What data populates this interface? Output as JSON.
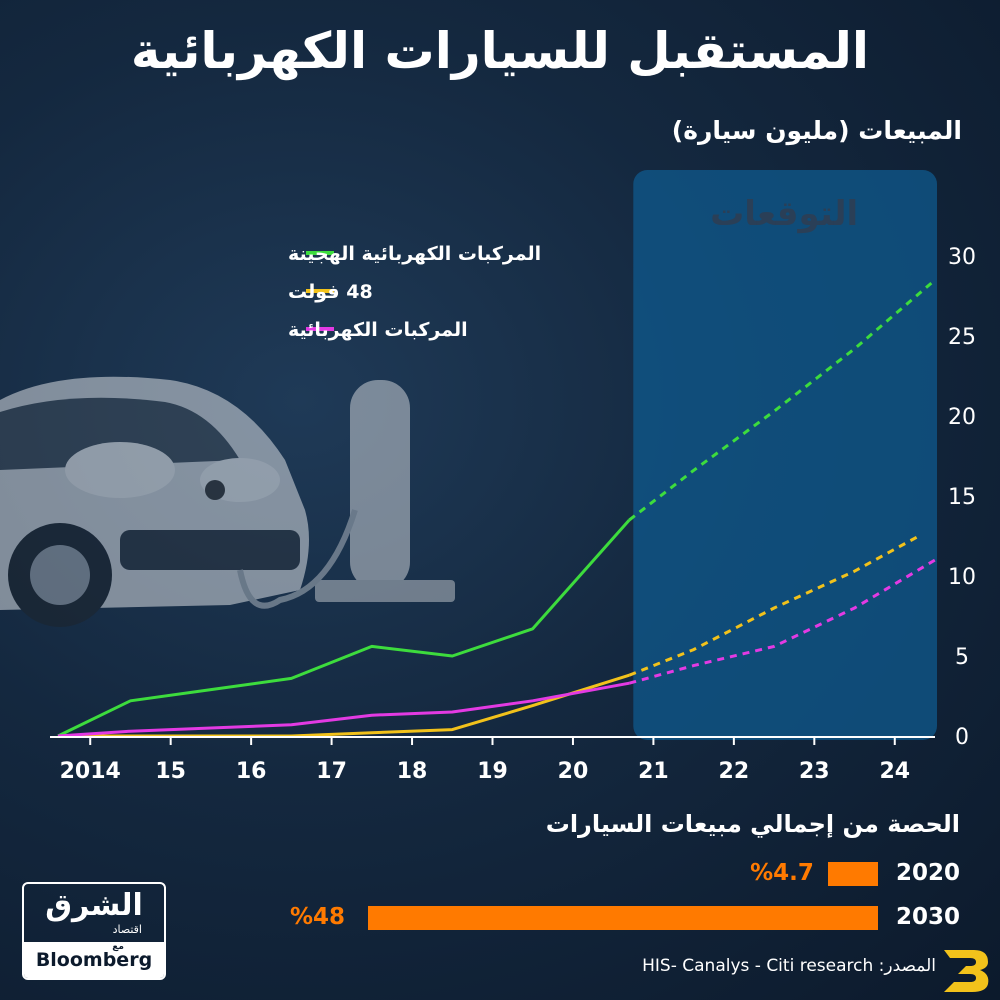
{
  "title": "المستقبل للسيارات الكهربائية",
  "subtitle": "المبيعات (مليون سيارة)",
  "forecast_label": "التوقعات",
  "chart_data": {
    "type": "line",
    "x": [
      2013.6,
      2014.5,
      2015.5,
      2016.5,
      2017.5,
      2018.5,
      2019.5,
      2020.7,
      2021.5,
      2022.5,
      2023.5,
      2024.3
    ],
    "x_tick_labels": [
      "2014",
      "15",
      "16",
      "17",
      "18",
      "19",
      "20",
      "21",
      "22",
      "23",
      "24"
    ],
    "x_tick_positions": [
      2014,
      2015,
      2016,
      2017,
      2018,
      2019,
      2020,
      2021,
      2022,
      2023,
      2024
    ],
    "y_ticks": [
      0,
      5,
      10,
      15,
      20,
      25,
      30
    ],
    "ylim": [
      0,
      30
    ],
    "xlim": [
      2013.5,
      2024.5
    ],
    "forecast_start": 2020.75,
    "legend_position": "top-left",
    "grid": false,
    "series": [
      {
        "name": "المركبات الكهربائية الهجينة",
        "color": "#3ddc3d",
        "actual": [
          [
            2013.6,
            0
          ],
          [
            2014.5,
            2.2
          ],
          [
            2015.5,
            2.9
          ],
          [
            2016.5,
            3.6
          ],
          [
            2017.5,
            5.6
          ],
          [
            2018.5,
            5.0
          ],
          [
            2019.5,
            6.7
          ],
          [
            2020.7,
            13.5
          ]
        ],
        "forecast": [
          [
            2020.7,
            13.5
          ],
          [
            2021.5,
            16.6
          ],
          [
            2022.5,
            20.3
          ],
          [
            2023.5,
            24.2
          ],
          [
            2024.5,
            28.5
          ]
        ]
      },
      {
        "name": "48 فولت",
        "color": "#f2c21b",
        "actual": [
          [
            2013.6,
            0
          ],
          [
            2014.5,
            0
          ],
          [
            2015.5,
            0
          ],
          [
            2016.5,
            0
          ],
          [
            2017.5,
            0.2
          ],
          [
            2018.5,
            0.4
          ],
          [
            2019.5,
            1.9
          ],
          [
            2020.7,
            3.8
          ]
        ],
        "forecast": [
          [
            2020.7,
            3.8
          ],
          [
            2021.5,
            5.4
          ],
          [
            2022.5,
            8.0
          ],
          [
            2023.5,
            10.3
          ],
          [
            2024.3,
            12.5
          ]
        ]
      },
      {
        "name": "المركبات الكهربائية",
        "color": "#e33ae3",
        "actual": [
          [
            2013.6,
            0
          ],
          [
            2014.5,
            0.3
          ],
          [
            2015.5,
            0.5
          ],
          [
            2016.5,
            0.7
          ],
          [
            2017.5,
            1.3
          ],
          [
            2018.5,
            1.5
          ],
          [
            2019.5,
            2.2
          ],
          [
            2020.7,
            3.3
          ]
        ],
        "forecast": [
          [
            2020.7,
            3.3
          ],
          [
            2021.5,
            4.4
          ],
          [
            2022.5,
            5.6
          ],
          [
            2023.5,
            8.0
          ],
          [
            2024.5,
            11.0
          ]
        ]
      }
    ]
  },
  "share": {
    "title": "الحصة من إجمالي مبيعات السيارات",
    "rows": [
      {
        "year": "2020",
        "label": "%4.7",
        "value": 4.7
      },
      {
        "year": "2030",
        "label": "%48",
        "value": 48
      }
    ],
    "color": "#ff7a00"
  },
  "logo": {
    "name": "الشرق",
    "sub": "اقتصاد",
    "with": "مع",
    "partner": "Bloomberg"
  },
  "source": "المصدر: HIS- Canalys - Citi research"
}
